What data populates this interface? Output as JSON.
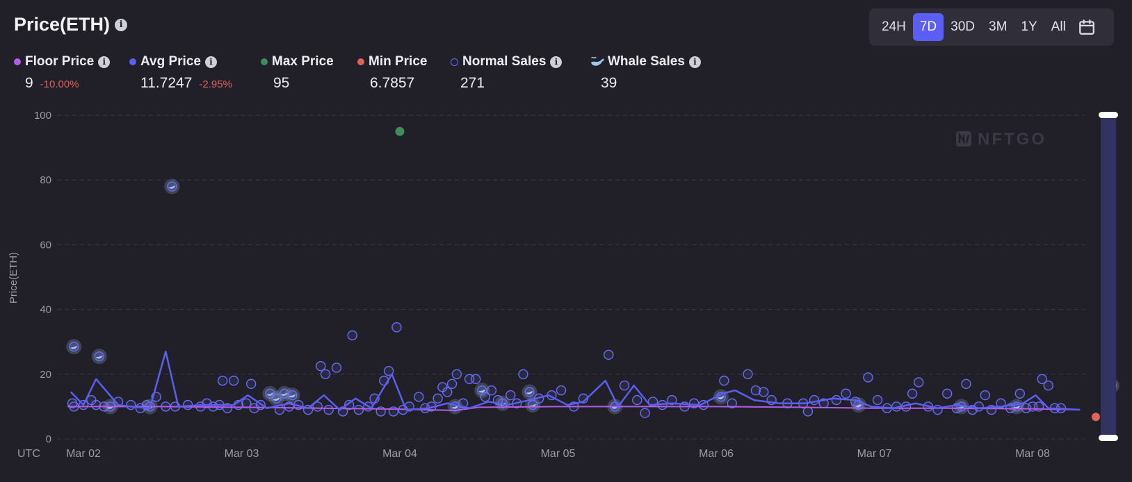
{
  "header": {
    "title": "Price(ETH)",
    "info_icon": "info-icon"
  },
  "range_buttons": [
    "24H",
    "7D",
    "30D",
    "3M",
    "1Y",
    "All"
  ],
  "range_selected": "7D",
  "calendar_icon": "calendar-icon",
  "legend": {
    "floor": {
      "label": "Floor Price",
      "value": "9",
      "change": "-10.00%",
      "color": "#b15ee6"
    },
    "avg": {
      "label": "Avg Price",
      "value": "11.7247",
      "change": "-2.95%",
      "color": "#5c5ef0"
    },
    "max": {
      "label": "Max Price",
      "value": "95",
      "color": "#3f8c5e"
    },
    "min": {
      "label": "Min Price",
      "value": "6.7857",
      "color": "#e0625d"
    },
    "normal": {
      "label": "Normal Sales",
      "value": "271",
      "color": "#6a6cf5"
    },
    "whale": {
      "label": "Whale Sales",
      "value": "39",
      "icon": "whale-icon"
    }
  },
  "watermark": "NFTGO",
  "chart_data": {
    "type": "scatter",
    "title": "Price(ETH)",
    "ylabel": "Price(ETH)",
    "xlabel": "UTC",
    "x_ticks": [
      "Mar 02",
      "Mar 03",
      "Mar 04",
      "Mar 05",
      "Mar 06",
      "Mar 07",
      "Mar 08"
    ],
    "x_range": [
      "Mar 01 21:00",
      "Mar 08 08:00"
    ],
    "ylim": [
      0,
      100
    ],
    "y_ticks": [
      0,
      20,
      40,
      60,
      80,
      100
    ],
    "grid": true,
    "colors": {
      "normal": "#6a6cf5",
      "avg": "#5c5ef0",
      "floor": "#b15ee6",
      "max": "#3f8c5e",
      "min": "#e0625d"
    },
    "max_point": {
      "x": 2.0,
      "y": 95
    },
    "min_point": {
      "x": 6.4,
      "y": 6.8
    },
    "whale_sales": [
      {
        "x": -0.06,
        "y": 28.5
      },
      {
        "x": 0.1,
        "y": 25.5
      },
      {
        "x": 0.56,
        "y": 78
      },
      {
        "x": 0.17,
        "y": 10
      },
      {
        "x": 0.42,
        "y": 10
      },
      {
        "x": 1.18,
        "y": 14
      },
      {
        "x": 1.22,
        "y": 12.5
      },
      {
        "x": 1.27,
        "y": 14
      },
      {
        "x": 1.32,
        "y": 13.5
      },
      {
        "x": 2.35,
        "y": 10
      },
      {
        "x": 2.52,
        "y": 15
      },
      {
        "x": 2.65,
        "y": 11
      },
      {
        "x": 2.82,
        "y": 14.5
      },
      {
        "x": 2.84,
        "y": 10.5
      },
      {
        "x": 3.36,
        "y": 10
      },
      {
        "x": 4.03,
        "y": 13
      },
      {
        "x": 4.9,
        "y": 10.5
      },
      {
        "x": 5.55,
        "y": 10
      },
      {
        "x": 5.9,
        "y": 10
      },
      {
        "x": 6.5,
        "y": 16.5
      }
    ],
    "normal_sales": [
      {
        "x": -0.07,
        "y": 11
      },
      {
        "x": -0.06,
        "y": 10
      },
      {
        "x": 0.0,
        "y": 10.5
      },
      {
        "x": 0.05,
        "y": 12
      },
      {
        "x": 0.08,
        "y": 10.5
      },
      {
        "x": 0.13,
        "y": 10
      },
      {
        "x": 0.22,
        "y": 11.5
      },
      {
        "x": 0.3,
        "y": 10.5
      },
      {
        "x": 0.36,
        "y": 9.5
      },
      {
        "x": 0.4,
        "y": 10.5
      },
      {
        "x": 0.46,
        "y": 13
      },
      {
        "x": 0.52,
        "y": 10
      },
      {
        "x": 0.58,
        "y": 10
      },
      {
        "x": 0.66,
        "y": 10.5
      },
      {
        "x": 0.74,
        "y": 10
      },
      {
        "x": 0.78,
        "y": 11
      },
      {
        "x": 0.82,
        "y": 10
      },
      {
        "x": 0.86,
        "y": 10.5
      },
      {
        "x": 0.88,
        "y": 18
      },
      {
        "x": 0.91,
        "y": 9.5
      },
      {
        "x": 0.95,
        "y": 18
      },
      {
        "x": 0.98,
        "y": 10.5
      },
      {
        "x": 1.03,
        "y": 11
      },
      {
        "x": 1.06,
        "y": 17
      },
      {
        "x": 1.08,
        "y": 9.5
      },
      {
        "x": 1.12,
        "y": 10.5
      },
      {
        "x": 1.24,
        "y": 9
      },
      {
        "x": 1.3,
        "y": 10
      },
      {
        "x": 1.36,
        "y": 10.5
      },
      {
        "x": 1.42,
        "y": 9
      },
      {
        "x": 1.48,
        "y": 10
      },
      {
        "x": 1.5,
        "y": 22.5
      },
      {
        "x": 1.53,
        "y": 20
      },
      {
        "x": 1.55,
        "y": 9
      },
      {
        "x": 1.6,
        "y": 22
      },
      {
        "x": 1.64,
        "y": 8.5
      },
      {
        "x": 1.68,
        "y": 10.5
      },
      {
        "x": 1.7,
        "y": 32
      },
      {
        "x": 1.74,
        "y": 9
      },
      {
        "x": 1.8,
        "y": 10
      },
      {
        "x": 1.84,
        "y": 12.5
      },
      {
        "x": 1.88,
        "y": 8.5
      },
      {
        "x": 1.9,
        "y": 18
      },
      {
        "x": 1.93,
        "y": 21
      },
      {
        "x": 1.96,
        "y": 8.5
      },
      {
        "x": 1.98,
        "y": 34.5
      },
      {
        "x": 2.02,
        "y": 9
      },
      {
        "x": 2.06,
        "y": 10
      },
      {
        "x": 2.12,
        "y": 13
      },
      {
        "x": 2.16,
        "y": 9.5
      },
      {
        "x": 2.2,
        "y": 10
      },
      {
        "x": 2.24,
        "y": 12.5
      },
      {
        "x": 2.27,
        "y": 16
      },
      {
        "x": 2.3,
        "y": 14.5
      },
      {
        "x": 2.33,
        "y": 17
      },
      {
        "x": 2.36,
        "y": 20
      },
      {
        "x": 2.4,
        "y": 11
      },
      {
        "x": 2.44,
        "y": 18.5
      },
      {
        "x": 2.48,
        "y": 18.5
      },
      {
        "x": 2.54,
        "y": 13
      },
      {
        "x": 2.58,
        "y": 15
      },
      {
        "x": 2.62,
        "y": 12
      },
      {
        "x": 2.7,
        "y": 13.5
      },
      {
        "x": 2.74,
        "y": 11
      },
      {
        "x": 2.78,
        "y": 20
      },
      {
        "x": 2.88,
        "y": 12.5
      },
      {
        "x": 2.96,
        "y": 13.5
      },
      {
        "x": 3.02,
        "y": 15
      },
      {
        "x": 3.1,
        "y": 10
      },
      {
        "x": 3.16,
        "y": 12.5
      },
      {
        "x": 3.32,
        "y": 26
      },
      {
        "x": 3.42,
        "y": 16.5
      },
      {
        "x": 3.5,
        "y": 12
      },
      {
        "x": 3.55,
        "y": 8
      },
      {
        "x": 3.6,
        "y": 11.5
      },
      {
        "x": 3.66,
        "y": 10.5
      },
      {
        "x": 3.72,
        "y": 12
      },
      {
        "x": 3.8,
        "y": 10
      },
      {
        "x": 3.86,
        "y": 11
      },
      {
        "x": 3.92,
        "y": 10.5
      },
      {
        "x": 4.05,
        "y": 18
      },
      {
        "x": 4.1,
        "y": 11
      },
      {
        "x": 4.2,
        "y": 20
      },
      {
        "x": 4.25,
        "y": 15
      },
      {
        "x": 4.3,
        "y": 14.5
      },
      {
        "x": 4.35,
        "y": 12
      },
      {
        "x": 4.45,
        "y": 11
      },
      {
        "x": 4.55,
        "y": 11
      },
      {
        "x": 4.58,
        "y": 8.5
      },
      {
        "x": 4.62,
        "y": 12
      },
      {
        "x": 4.68,
        "y": 11
      },
      {
        "x": 4.76,
        "y": 12
      },
      {
        "x": 4.82,
        "y": 14
      },
      {
        "x": 4.88,
        "y": 11.5
      },
      {
        "x": 4.96,
        "y": 19
      },
      {
        "x": 5.02,
        "y": 12
      },
      {
        "x": 5.08,
        "y": 9.5
      },
      {
        "x": 5.14,
        "y": 10
      },
      {
        "x": 5.2,
        "y": 10
      },
      {
        "x": 5.24,
        "y": 14
      },
      {
        "x": 5.28,
        "y": 17.5
      },
      {
        "x": 5.34,
        "y": 10
      },
      {
        "x": 5.4,
        "y": 9
      },
      {
        "x": 5.46,
        "y": 14
      },
      {
        "x": 5.52,
        "y": 9.5
      },
      {
        "x": 5.58,
        "y": 17
      },
      {
        "x": 5.62,
        "y": 9
      },
      {
        "x": 5.66,
        "y": 10
      },
      {
        "x": 5.7,
        "y": 13.5
      },
      {
        "x": 5.74,
        "y": 9
      },
      {
        "x": 5.8,
        "y": 11
      },
      {
        "x": 5.86,
        "y": 9.5
      },
      {
        "x": 5.92,
        "y": 14
      },
      {
        "x": 5.96,
        "y": 9.5
      },
      {
        "x": 6.0,
        "y": 10
      },
      {
        "x": 6.04,
        "y": 10
      },
      {
        "x": 6.06,
        "y": 18.5
      },
      {
        "x": 6.1,
        "y": 16.5
      },
      {
        "x": 6.14,
        "y": 9.5
      },
      {
        "x": 6.18,
        "y": 9.5
      }
    ],
    "avg_line": [
      {
        "x": -0.08,
        "y": 14.5
      },
      {
        "x": 0.0,
        "y": 10.5
      },
      {
        "x": 0.08,
        "y": 18.5
      },
      {
        "x": 0.22,
        "y": 10.5
      },
      {
        "x": 0.3,
        "y": 10
      },
      {
        "x": 0.42,
        "y": 9.5
      },
      {
        "x": 0.52,
        "y": 27
      },
      {
        "x": 0.6,
        "y": 10
      },
      {
        "x": 0.75,
        "y": 10.5
      },
      {
        "x": 0.88,
        "y": 10.5
      },
      {
        "x": 0.95,
        "y": 10.5
      },
      {
        "x": 1.04,
        "y": 13.5
      },
      {
        "x": 1.16,
        "y": 9.5
      },
      {
        "x": 1.3,
        "y": 11
      },
      {
        "x": 1.42,
        "y": 9.5
      },
      {
        "x": 1.52,
        "y": 13.5
      },
      {
        "x": 1.62,
        "y": 9
      },
      {
        "x": 1.72,
        "y": 12.5
      },
      {
        "x": 1.82,
        "y": 9.5
      },
      {
        "x": 1.95,
        "y": 20
      },
      {
        "x": 2.04,
        "y": 9
      },
      {
        "x": 2.18,
        "y": 9.5
      },
      {
        "x": 2.3,
        "y": 11
      },
      {
        "x": 2.44,
        "y": 9.5
      },
      {
        "x": 2.56,
        "y": 11.5
      },
      {
        "x": 2.68,
        "y": 10.5
      },
      {
        "x": 2.82,
        "y": 12
      },
      {
        "x": 2.94,
        "y": 13.5
      },
      {
        "x": 3.06,
        "y": 10.5
      },
      {
        "x": 3.16,
        "y": 11.5
      },
      {
        "x": 3.3,
        "y": 18
      },
      {
        "x": 3.38,
        "y": 10
      },
      {
        "x": 3.48,
        "y": 16.5
      },
      {
        "x": 3.58,
        "y": 10.5
      },
      {
        "x": 3.72,
        "y": 11
      },
      {
        "x": 3.9,
        "y": 10.5
      },
      {
        "x": 4.04,
        "y": 14
      },
      {
        "x": 4.12,
        "y": 15
      },
      {
        "x": 4.24,
        "y": 12
      },
      {
        "x": 4.4,
        "y": 11
      },
      {
        "x": 4.56,
        "y": 11
      },
      {
        "x": 4.74,
        "y": 12.5
      },
      {
        "x": 4.88,
        "y": 12
      },
      {
        "x": 4.98,
        "y": 10
      },
      {
        "x": 5.12,
        "y": 9.5
      },
      {
        "x": 5.26,
        "y": 11
      },
      {
        "x": 5.4,
        "y": 9.5
      },
      {
        "x": 5.52,
        "y": 10.5
      },
      {
        "x": 5.66,
        "y": 9.5
      },
      {
        "x": 5.8,
        "y": 10
      },
      {
        "x": 5.94,
        "y": 11
      },
      {
        "x": 6.02,
        "y": 13.5
      },
      {
        "x": 6.1,
        "y": 9.5
      },
      {
        "x": 6.3,
        "y": 9
      }
    ],
    "floor_line": [
      {
        "x": -0.1,
        "y": 10
      },
      {
        "x": 0.5,
        "y": 10
      },
      {
        "x": 1.0,
        "y": 9.8
      },
      {
        "x": 1.5,
        "y": 9.5
      },
      {
        "x": 2.0,
        "y": 9.2
      },
      {
        "x": 2.35,
        "y": 8.8
      },
      {
        "x": 2.5,
        "y": 9.8
      },
      {
        "x": 3.0,
        "y": 10
      },
      {
        "x": 3.5,
        "y": 10
      },
      {
        "x": 4.0,
        "y": 10
      },
      {
        "x": 4.5,
        "y": 9.8
      },
      {
        "x": 5.0,
        "y": 9.5
      },
      {
        "x": 5.5,
        "y": 9.5
      },
      {
        "x": 6.0,
        "y": 9.3
      },
      {
        "x": 6.3,
        "y": 9
      }
    ]
  }
}
